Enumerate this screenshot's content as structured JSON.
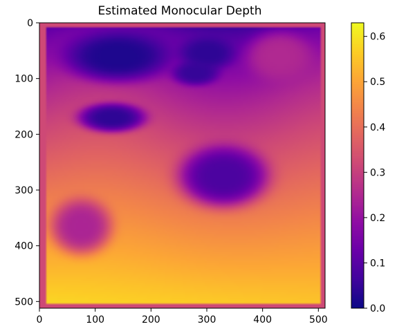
{
  "chart_data": {
    "type": "heatmap",
    "title": "Estimated Monocular Depth",
    "xlabel": "",
    "ylabel": "",
    "colormap": "plasma",
    "image_size": [
      512,
      512
    ],
    "xlim": [
      0,
      512
    ],
    "ylim": [
      512,
      0
    ],
    "x_ticks": [
      0,
      100,
      200,
      300,
      400,
      500
    ],
    "y_ticks": [
      0,
      100,
      200,
      300,
      400,
      500
    ],
    "colorbar": {
      "vmin": 0.0,
      "vmax": 0.63,
      "ticks": [
        0.0,
        0.1,
        0.2,
        0.3,
        0.4,
        0.5,
        0.6
      ],
      "tick_labels": [
        "0.0",
        "0.1",
        "0.2",
        "0.3",
        "0.4",
        "0.5",
        "0.6"
      ]
    },
    "depth_field": {
      "border_value": 0.32,
      "top_value": 0.1,
      "bottom_value": 0.58,
      "regions": [
        {
          "label": "top-left dark region",
          "cx": 140,
          "cy": 60,
          "rx": 95,
          "ry": 45,
          "value": 0.02
        },
        {
          "label": "top-middle dark region",
          "cx": 300,
          "cy": 55,
          "rx": 50,
          "ry": 30,
          "value": 0.04
        },
        {
          "label": "upper blob",
          "cx": 280,
          "cy": 90,
          "rx": 42,
          "ry": 22,
          "value": 0.05
        },
        {
          "label": "left-middle blob",
          "cx": 130,
          "cy": 170,
          "rx": 60,
          "ry": 26,
          "value": 0.04
        },
        {
          "label": "right-middle blob",
          "cx": 330,
          "cy": 275,
          "rx": 80,
          "ry": 55,
          "value": 0.08
        },
        {
          "label": "lower-left blob",
          "cx": 75,
          "cy": 365,
          "rx": 55,
          "ry": 50,
          "value": 0.24
        },
        {
          "label": "top-right patch",
          "cx": 430,
          "cy": 60,
          "rx": 60,
          "ry": 45,
          "value": 0.25
        }
      ]
    }
  }
}
